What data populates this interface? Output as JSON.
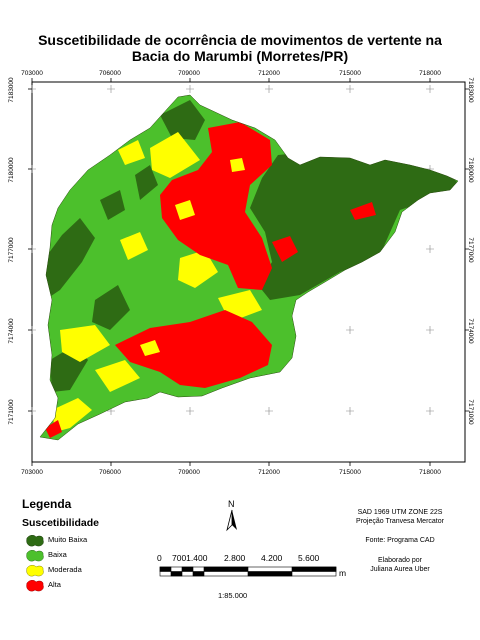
{
  "title": {
    "line1": "Suscetibilidade de ocorrência de movimentos de vertente na",
    "line2": "Bacia do Marumbi (Morretes/PR)"
  },
  "grid": {
    "x_labels": [
      "703000",
      "706000",
      "709000",
      "712000",
      "715000",
      "718000"
    ],
    "y_labels": [
      "7183000",
      "7180000",
      "7177000",
      "7174000",
      "7171000"
    ]
  },
  "colors": {
    "muito_baixa": "#2e6b14",
    "baixa": "#4cc02c",
    "moderada": "#ffff00",
    "alta": "#ff0000"
  },
  "legend": {
    "title": "Legenda",
    "subtitle": "Suscetibilidade",
    "items": [
      {
        "label": "Muito Baixa",
        "color": "#2e6b14"
      },
      {
        "label": "Baixa",
        "color": "#4cc02c"
      },
      {
        "label": "Moderada",
        "color": "#ffff00"
      },
      {
        "label": "Alta",
        "color": "#ff0000"
      }
    ]
  },
  "north": {
    "letter": "N"
  },
  "scale": {
    "numbers": [
      "0",
      "7001.400",
      "2.800",
      "4.200",
      "5.600"
    ],
    "unit": "m",
    "ratio": "1:85.000"
  },
  "info": {
    "datum": "SAD 1969 UTM ZONE 22S",
    "projection": "Projeção Tranvesa Mercator",
    "source": "Fonte: Programa CAD",
    "made_by": "Elaborado por",
    "author": "Juliana Aurea Uber"
  }
}
